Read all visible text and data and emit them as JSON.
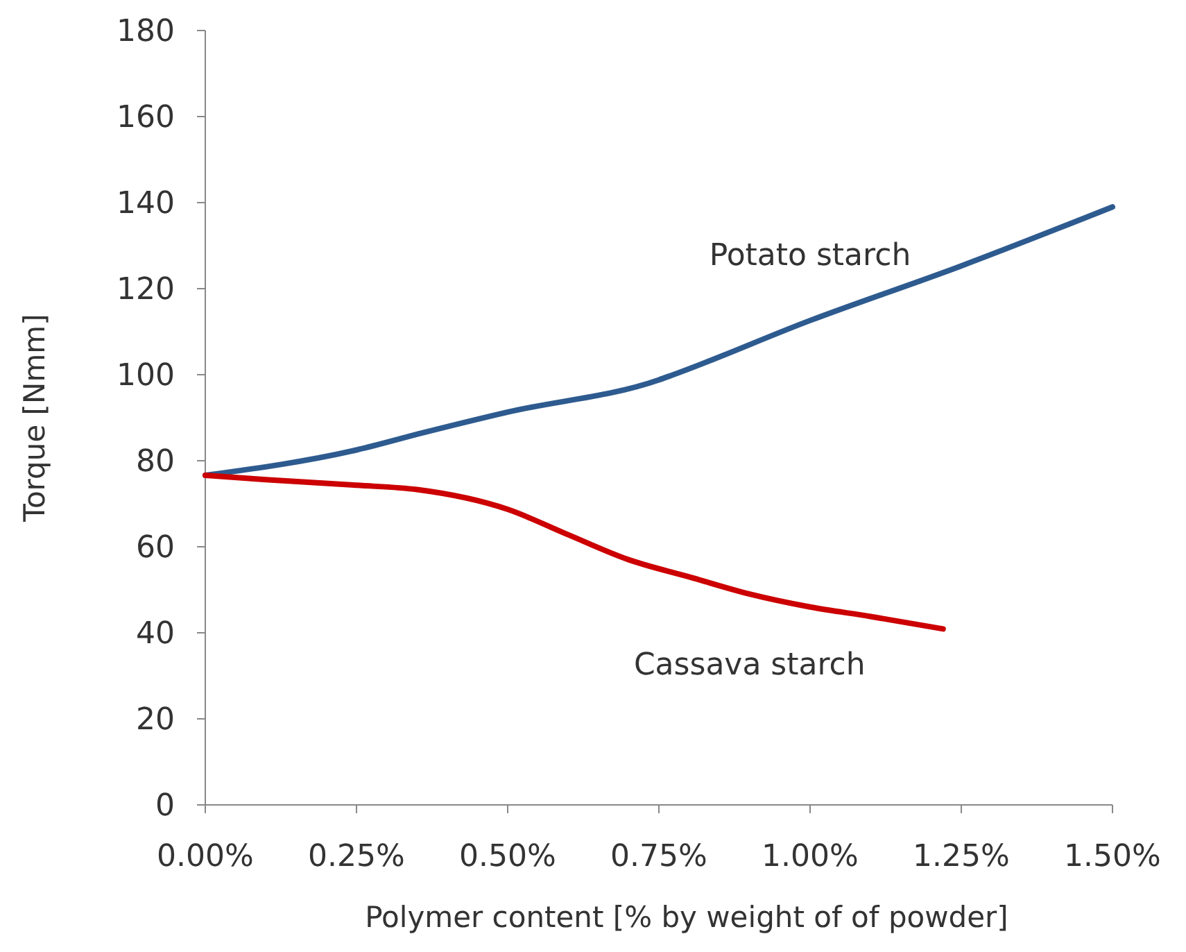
{
  "chart_data": {
    "type": "line",
    "xlabel": "Polymer content [% by weight of of powder]",
    "ylabel": "Torque [Nmm]",
    "xlim": [
      0,
      1.5
    ],
    "xticks": [
      {
        "value": 0,
        "label": "0.00%"
      },
      {
        "value": 0.25,
        "label": "0.25%"
      },
      {
        "value": 0.5,
        "label": "0.50%"
      },
      {
        "value": 0.75,
        "label": "0.75%"
      },
      {
        "value": 1,
        "label": "1.00%"
      },
      {
        "value": 1.25,
        "label": "1.25%"
      },
      {
        "value": 1.5,
        "label": "1.50%"
      }
    ],
    "ylim": [
      0,
      180
    ],
    "yticks": [
      0,
      20,
      40,
      60,
      80,
      100,
      120,
      140,
      160,
      180
    ],
    "grid": false,
    "marker": "none",
    "line_style": "solid",
    "series": [
      {
        "name": "Potato starch",
        "color": "#2e5b8f",
        "x": [
          0,
          0.25,
          0.36,
          0.5,
          0.75,
          0.77,
          1.0,
          1.25,
          1.5
        ],
        "values": [
          76.6,
          82.5,
          86.5,
          91.3,
          98.8,
          99.8,
          112.6,
          125.3,
          139
        ]
      },
      {
        "name": "Cassava starch",
        "color": "#cc0000",
        "x": [
          0,
          0.1,
          0.25,
          0.35,
          0.5,
          0.6,
          0.7,
          0.8,
          0.9,
          1.0,
          1.1,
          1.22
        ],
        "values": [
          76.6,
          75.6,
          74.3,
          73.3,
          68.7,
          62.8,
          57,
          53,
          49,
          46,
          43.8,
          40.9
        ]
      }
    ]
  }
}
